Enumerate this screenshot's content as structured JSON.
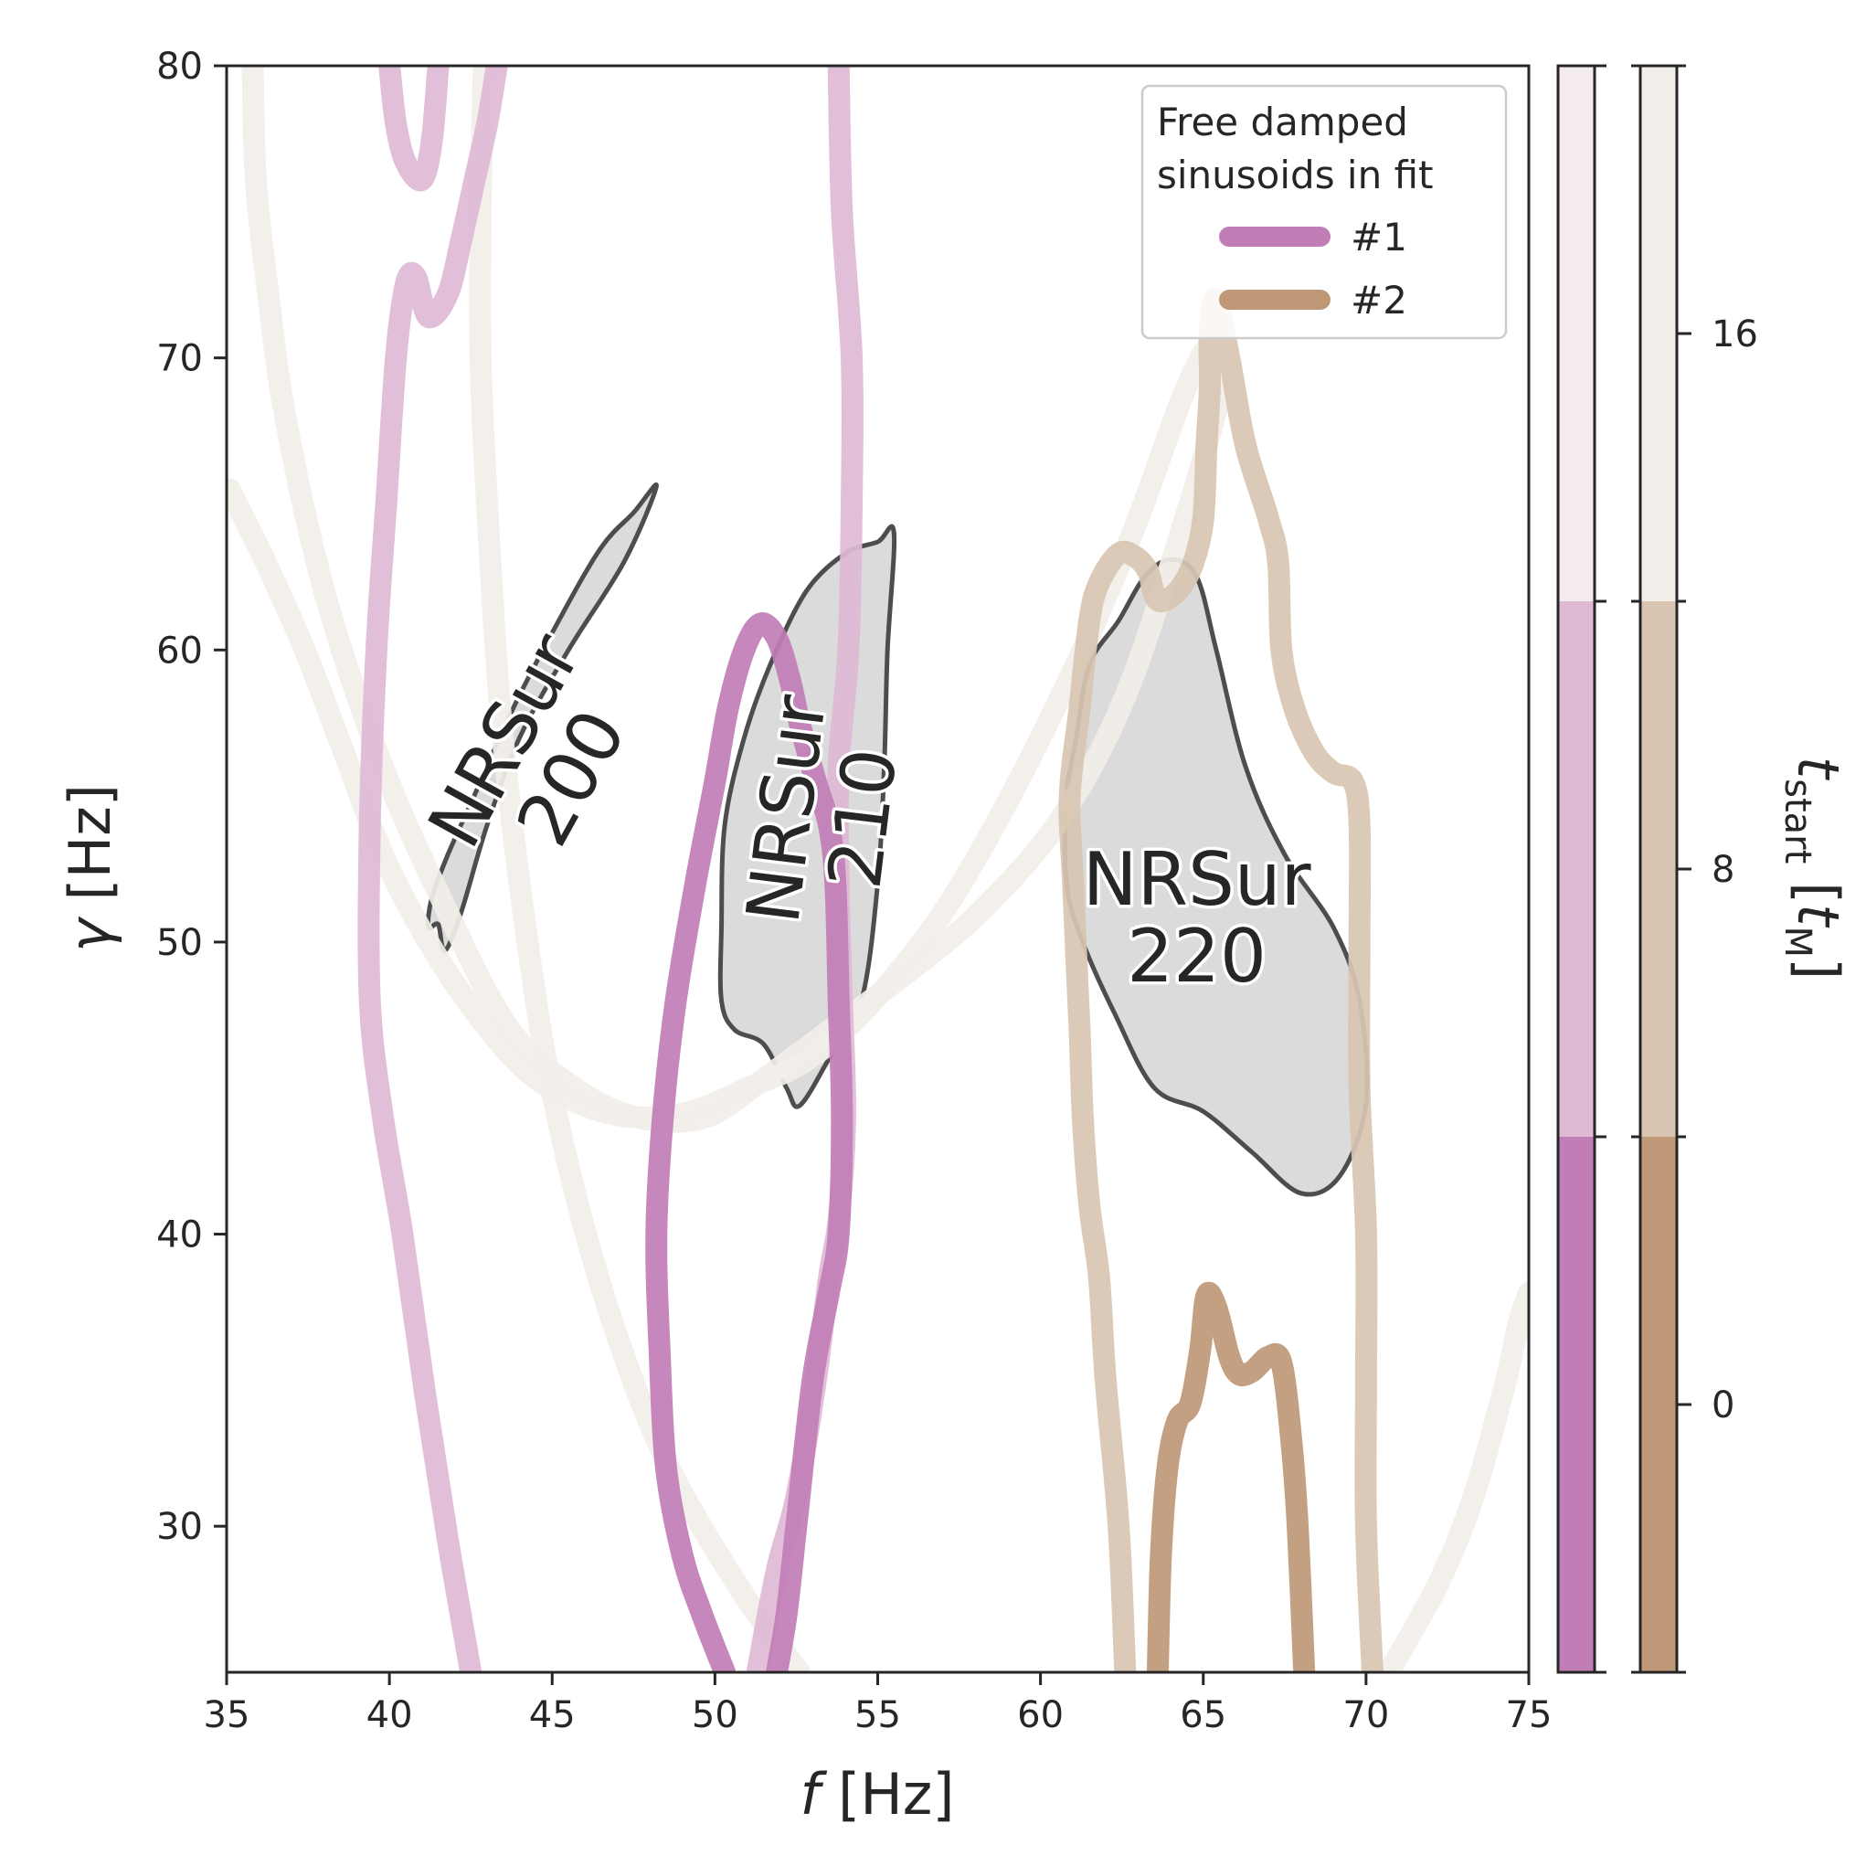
{
  "chart_data": {
    "type": "line",
    "xlabel_symbol": "f",
    "xlabel_unit": "[Hz]",
    "ylabel_symbol": "γ",
    "ylabel_unit": "[Hz]",
    "xlim": [
      35,
      75
    ],
    "ylim": [
      25,
      80
    ],
    "xticks": [
      "35",
      "40",
      "45",
      "50",
      "55",
      "60",
      "65",
      "70",
      "75"
    ],
    "yticks": [
      "30",
      "40",
      "50",
      "60",
      "70",
      "80"
    ],
    "grid": false,
    "legend": {
      "placement": "top-right",
      "title_line1": "Free damped",
      "title_line2": "sinusoids in fit",
      "entries": [
        {
          "label": "#1",
          "color": "#c17eb6"
        },
        {
          "label": "#2",
          "color": "#bf9877"
        }
      ]
    },
    "colorbar_tstart": {
      "label_symbol": "t",
      "label_subscript": "start",
      "label_unit_symbol": "t",
      "label_unit_subscript": "M",
      "ticks": [
        "0",
        "8",
        "16"
      ],
      "tick_values": [
        0,
        8,
        16
      ],
      "range": [
        -4,
        20
      ],
      "bands": [
        {
          "from": -4,
          "to": 4,
          "color": "#bf9877"
        },
        {
          "from": 4,
          "to": 12,
          "color": "#d9c5b2"
        },
        {
          "from": 12,
          "to": 20,
          "color": "#f2eee9"
        }
      ]
    },
    "colorbar_free": {
      "bands": [
        {
          "from": 0,
          "to": 1,
          "color": "#c17eb6"
        },
        {
          "from": 1,
          "to": 2,
          "color": "#dfbad5"
        },
        {
          "from": 2,
          "to": 3,
          "color": "#f3ebf0"
        }
      ]
    },
    "nrsur_regions": [
      {
        "label_line1": "NRSur",
        "label_line2": "200",
        "label_pos": [
          44.5,
          56.3
        ],
        "label_rotation": -61,
        "points": [
          [
            48.2,
            65.6
          ],
          [
            47.2,
            63.0
          ],
          [
            45.5,
            60.0
          ],
          [
            44.0,
            57.0
          ],
          [
            43.0,
            54.0
          ],
          [
            42.2,
            51.0
          ],
          [
            41.7,
            49.7
          ],
          [
            41.5,
            50.6
          ],
          [
            41.2,
            50.5
          ],
          [
            41.3,
            51.5
          ],
          [
            41.8,
            53.0
          ],
          [
            42.6,
            55.0
          ],
          [
            43.8,
            58.0
          ],
          [
            45.2,
            61.0
          ],
          [
            46.5,
            63.5
          ],
          [
            47.5,
            64.7
          ]
        ]
      },
      {
        "label_line1": "NRSur",
        "label_line2": "210",
        "label_pos": [
          53.3,
          54.4
        ],
        "label_rotation": -83,
        "points": [
          [
            55.5,
            64.0
          ],
          [
            55.3,
            60.0
          ],
          [
            55.2,
            56.0
          ],
          [
            55.0,
            52.0
          ],
          [
            54.5,
            48.0
          ],
          [
            53.5,
            46.0
          ],
          [
            52.6,
            44.4
          ],
          [
            52.2,
            45.0
          ],
          [
            51.5,
            46.5
          ],
          [
            50.6,
            47.0
          ],
          [
            50.2,
            48.0
          ],
          [
            50.2,
            50.5
          ],
          [
            50.3,
            54.0
          ],
          [
            50.9,
            57.0
          ],
          [
            51.7,
            59.5
          ],
          [
            52.8,
            62.0
          ],
          [
            54.0,
            63.3
          ],
          [
            55.0,
            63.7
          ]
        ]
      },
      {
        "label_line1": "NRSur",
        "label_line2": "220",
        "label_pos": [
          64.8,
          50.9
        ],
        "label_rotation": 0,
        "points": [
          [
            64.0,
            63.1
          ],
          [
            63.2,
            62.5
          ],
          [
            62.4,
            61.0
          ],
          [
            61.5,
            59.5
          ],
          [
            61.1,
            57.0
          ],
          [
            60.8,
            55.0
          ],
          [
            60.8,
            52.0
          ],
          [
            61.3,
            50.0
          ],
          [
            62.3,
            47.5
          ],
          [
            63.5,
            45.0
          ],
          [
            65.0,
            44.2
          ],
          [
            66.5,
            42.8
          ],
          [
            68.0,
            41.4
          ],
          [
            69.2,
            42.0
          ],
          [
            70.0,
            44.5
          ],
          [
            69.8,
            48.0
          ],
          [
            69.0,
            50.5
          ],
          [
            67.5,
            53.0
          ],
          [
            66.3,
            56.0
          ],
          [
            65.4,
            60.0
          ],
          [
            64.8,
            62.5
          ]
        ]
      }
    ],
    "series": [
      {
        "color": "#f2eee9",
        "points": [
          [
            35.8,
            80
          ],
          [
            35.9,
            76
          ],
          [
            36.3,
            72
          ],
          [
            36.8,
            68
          ],
          [
            38.0,
            62
          ],
          [
            39.8,
            56
          ],
          [
            41.8,
            51
          ],
          [
            43.7,
            47
          ],
          [
            45.7,
            45
          ],
          [
            47.6,
            44
          ],
          [
            49.7,
            44
          ],
          [
            51.6,
            45.4
          ],
          [
            53.8,
            47.2
          ],
          [
            56.2,
            49.2
          ],
          [
            58.3,
            51.2
          ],
          [
            60.6,
            54.2
          ],
          [
            62.6,
            58.4
          ],
          [
            64.5,
            64.7
          ],
          [
            65.6,
            69.0
          ]
        ]
      },
      {
        "color": "#f2eee9",
        "points": [
          [
            35.1,
            65.5
          ],
          [
            36.2,
            63.0
          ],
          [
            37.4,
            60.0
          ],
          [
            38.6,
            56.5
          ],
          [
            39.8,
            53.0
          ],
          [
            41.2,
            50.0
          ],
          [
            42.7,
            47.5
          ],
          [
            44.3,
            45.5
          ],
          [
            46.0,
            44.4
          ],
          [
            47.6,
            44.0
          ],
          [
            49.3,
            44.2
          ],
          [
            51.0,
            45.0
          ],
          [
            52.6,
            45.8
          ],
          [
            54.0,
            47.0
          ],
          [
            55.5,
            48.8
          ],
          [
            57.0,
            51.0
          ],
          [
            58.5,
            53.8
          ],
          [
            60.0,
            57.0
          ],
          [
            61.5,
            60.5
          ],
          [
            63.0,
            64.5
          ],
          [
            64.3,
            68.5
          ],
          [
            65.0,
            70.2
          ]
        ]
      },
      {
        "color": "#f2eee9",
        "points": [
          [
            42.9,
            80
          ],
          [
            42.8,
            75
          ],
          [
            42.8,
            70
          ],
          [
            43.0,
            65
          ],
          [
            43.4,
            58
          ],
          [
            44.0,
            52
          ],
          [
            44.8,
            46
          ],
          [
            45.8,
            41
          ],
          [
            47.0,
            36.5
          ],
          [
            48.6,
            32
          ],
          [
            50.8,
            27.8
          ],
          [
            52.6,
            25
          ]
        ]
      },
      {
        "color": "#f2eee9",
        "points": [
          [
            70.7,
            25
          ],
          [
            72.2,
            28
          ],
          [
            73.3,
            31
          ],
          [
            74.3,
            35
          ],
          [
            74.7,
            37
          ],
          [
            75.0,
            38
          ]
        ]
      },
      {
        "color": "#dfbad5",
        "points": [
          [
            40.0,
            80
          ],
          [
            40.2,
            78
          ],
          [
            40.5,
            76.7
          ],
          [
            41.0,
            76.1
          ],
          [
            41.3,
            77.4
          ],
          [
            41.5,
            80
          ]
        ]
      },
      {
        "color": "#dfbad5",
        "points": [
          [
            43.3,
            80
          ],
          [
            43.0,
            78.0
          ],
          [
            42.6,
            76.0
          ],
          [
            42.2,
            74.0
          ],
          [
            41.8,
            72.2
          ],
          [
            41.2,
            71.4
          ],
          [
            40.8,
            72.8
          ],
          [
            40.5,
            72.5
          ],
          [
            40.2,
            70.0
          ],
          [
            39.9,
            65.0
          ],
          [
            39.6,
            60.0
          ],
          [
            39.4,
            54.0
          ],
          [
            39.4,
            48.0
          ],
          [
            39.8,
            44.0
          ],
          [
            40.4,
            40.0
          ],
          [
            41.1,
            34.5
          ],
          [
            41.8,
            29.5
          ],
          [
            42.5,
            25
          ]
        ]
      },
      {
        "color": "#dfbad5",
        "points": [
          [
            53.8,
            80
          ],
          [
            53.9,
            75
          ],
          [
            54.2,
            70
          ],
          [
            54.2,
            65
          ],
          [
            54.1,
            60
          ],
          [
            53.8,
            56
          ],
          [
            53.8,
            52
          ],
          [
            53.9,
            48
          ],
          [
            54.0,
            44
          ],
          [
            53.8,
            40.5
          ],
          [
            53.5,
            38.5
          ],
          [
            53.1,
            35
          ],
          [
            52.5,
            31
          ],
          [
            51.9,
            28.5
          ],
          [
            51.3,
            25
          ]
        ]
      },
      {
        "color": "#c17eb6",
        "points": [
          [
            50.3,
            25
          ],
          [
            49.6,
            27
          ],
          [
            49.0,
            29
          ],
          [
            48.5,
            32
          ],
          [
            48.3,
            36
          ],
          [
            48.2,
            40
          ],
          [
            48.4,
            44
          ],
          [
            48.8,
            48
          ],
          [
            49.4,
            52
          ],
          [
            50.0,
            55.5
          ],
          [
            50.4,
            58
          ],
          [
            50.9,
            60
          ],
          [
            51.4,
            60.9
          ],
          [
            51.9,
            60.4
          ],
          [
            52.3,
            59
          ],
          [
            52.6,
            57.5
          ],
          [
            53.1,
            55.5
          ],
          [
            53.5,
            54
          ],
          [
            53.7,
            52
          ],
          [
            53.8,
            48
          ],
          [
            53.9,
            44
          ],
          [
            53.8,
            40
          ],
          [
            53.5,
            38
          ],
          [
            53.0,
            35
          ],
          [
            52.5,
            30
          ],
          [
            52.2,
            27
          ],
          [
            51.9,
            25
          ]
        ]
      },
      {
        "color": "#d9c5b2",
        "points": [
          [
            62.6,
            25
          ],
          [
            62.4,
            30
          ],
          [
            62.0,
            35
          ],
          [
            61.8,
            38.5
          ],
          [
            61.5,
            41
          ],
          [
            61.3,
            44
          ],
          [
            61.2,
            47
          ],
          [
            61.0,
            52
          ],
          [
            60.9,
            55
          ],
          [
            61.2,
            58
          ],
          [
            61.5,
            61
          ],
          [
            61.8,
            62.3
          ],
          [
            62.4,
            63.3
          ],
          [
            62.9,
            63.2
          ],
          [
            63.3,
            62.7
          ],
          [
            63.6,
            61.7
          ],
          [
            64.2,
            62
          ],
          [
            64.7,
            63
          ],
          [
            65.0,
            64.5
          ],
          [
            65.1,
            67
          ],
          [
            65.2,
            69
          ],
          [
            65.2,
            71
          ],
          [
            65.4,
            72
          ],
          [
            65.8,
            70
          ],
          [
            66.3,
            67
          ],
          [
            67.0,
            64.5
          ],
          [
            67.3,
            63
          ],
          [
            67.4,
            60
          ],
          [
            67.8,
            58
          ],
          [
            68.4,
            56.5
          ],
          [
            69.0,
            55.8
          ],
          [
            69.6,
            55.5
          ],
          [
            69.8,
            54
          ],
          [
            69.8,
            50
          ],
          [
            69.8,
            45
          ],
          [
            70.0,
            40
          ],
          [
            70.0,
            35
          ],
          [
            70.0,
            30
          ],
          [
            70.2,
            25
          ]
        ]
      },
      {
        "color": "#bf9877",
        "points": [
          [
            63.6,
            25
          ],
          [
            63.7,
            29
          ],
          [
            63.9,
            32
          ],
          [
            64.2,
            33.6
          ],
          [
            64.6,
            34.2
          ],
          [
            64.9,
            36
          ],
          [
            65.1,
            37.9
          ],
          [
            65.4,
            37.5
          ],
          [
            65.8,
            35.8
          ],
          [
            66.1,
            35.2
          ],
          [
            66.5,
            35.3
          ],
          [
            67.0,
            35.8
          ],
          [
            67.4,
            35.6
          ],
          [
            67.7,
            33
          ],
          [
            67.9,
            30
          ],
          [
            68.1,
            25
          ]
        ]
      }
    ]
  }
}
